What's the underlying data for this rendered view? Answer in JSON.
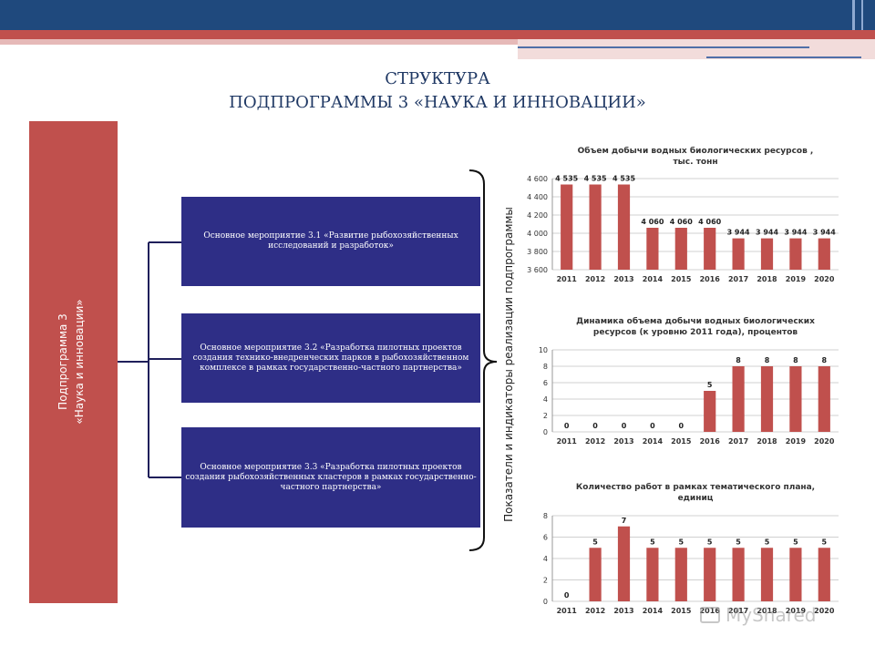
{
  "title": {
    "line1": "СТРУКТУРА",
    "line2": "ПОДПРОГРАММЫ 3 «НАУКА И ИННОВАЦИИ»"
  },
  "subprogram": {
    "line1": "Подпрограмма 3",
    "line2": "«Наука и инновации»"
  },
  "measures": [
    "Основное мероприятие 3.1 «Развитие рыбохозяйственных исследований и разработок»",
    "Основное мероприятие 3.2 «Разработка пилотных проектов создания технико-внедренческих парков в рыбохозяйственном комплексе в рамках государственно-частного партнерства»",
    "Основное мероприятие 3.3 «Разработка пилотных проектов создания рыбохозяйственных кластеров в рамках государственно-частного партнерства»"
  ],
  "indicators_label": "Показатели и индикаторы реализации подпрограммы",
  "watermark": "MyShared",
  "colors": {
    "bar": "#c0504d",
    "measure_box": "#2e2e86",
    "header_blue": "#1f497d"
  },
  "chart_data": [
    {
      "type": "bar",
      "title_lines": [
        "Объем добычи водных биологических ресурсов ,",
        "тыс. тонн"
      ],
      "categories": [
        "2011",
        "2012",
        "2013",
        "2014",
        "2015",
        "2016",
        "2017",
        "2018",
        "2019",
        "2020"
      ],
      "values": [
        4535,
        4535,
        4535,
        4060,
        4060,
        4060,
        3944,
        3944,
        3944,
        3944
      ],
      "data_labels": [
        "4 535",
        "4 535",
        "4 535",
        "4 060",
        "4 060",
        "4 060",
        "3 944",
        "3 944",
        "3 944",
        "3 944"
      ],
      "ylim": [
        3600,
        4600
      ],
      "yticks": [
        3600,
        3800,
        4000,
        4200,
        4400,
        4600
      ],
      "ytick_labels": [
        "3 600",
        "3 800",
        "4 000",
        "4 200",
        "4 400",
        "4 600"
      ],
      "grid": true
    },
    {
      "type": "bar",
      "title_lines": [
        "Динамика объема добычи водных биологических",
        "ресурсов (к уровню 2011 года), процентов"
      ],
      "categories": [
        "2011",
        "2012",
        "2013",
        "2014",
        "2015",
        "2016",
        "2017",
        "2018",
        "2019",
        "2020"
      ],
      "values": [
        0,
        0,
        0,
        0,
        0,
        5,
        8,
        8,
        8,
        8
      ],
      "data_labels": [
        "0",
        "0",
        "0",
        "0",
        "0",
        "5",
        "8",
        "8",
        "8",
        "8"
      ],
      "ylim": [
        0,
        10
      ],
      "yticks": [
        0,
        2,
        4,
        6,
        8,
        10
      ],
      "ytick_labels": [
        "0",
        "2",
        "4",
        "6",
        "8",
        "10"
      ],
      "grid": true
    },
    {
      "type": "bar",
      "title_lines": [
        "Количество работ в рамках тематического плана,",
        "единиц"
      ],
      "categories": [
        "2011",
        "2012",
        "2013",
        "2014",
        "2015",
        "2016",
        "2017",
        "2018",
        "2019",
        "2020"
      ],
      "values": [
        0,
        5,
        7,
        5,
        5,
        5,
        5,
        5,
        5,
        5
      ],
      "data_labels": [
        "0",
        "5",
        "7",
        "5",
        "5",
        "5",
        "5",
        "5",
        "5",
        "5"
      ],
      "ylim": [
        0,
        8
      ],
      "yticks": [
        0,
        2,
        4,
        6,
        8
      ],
      "ytick_labels": [
        "0",
        "2",
        "4",
        "6",
        "8"
      ],
      "grid": true
    }
  ]
}
